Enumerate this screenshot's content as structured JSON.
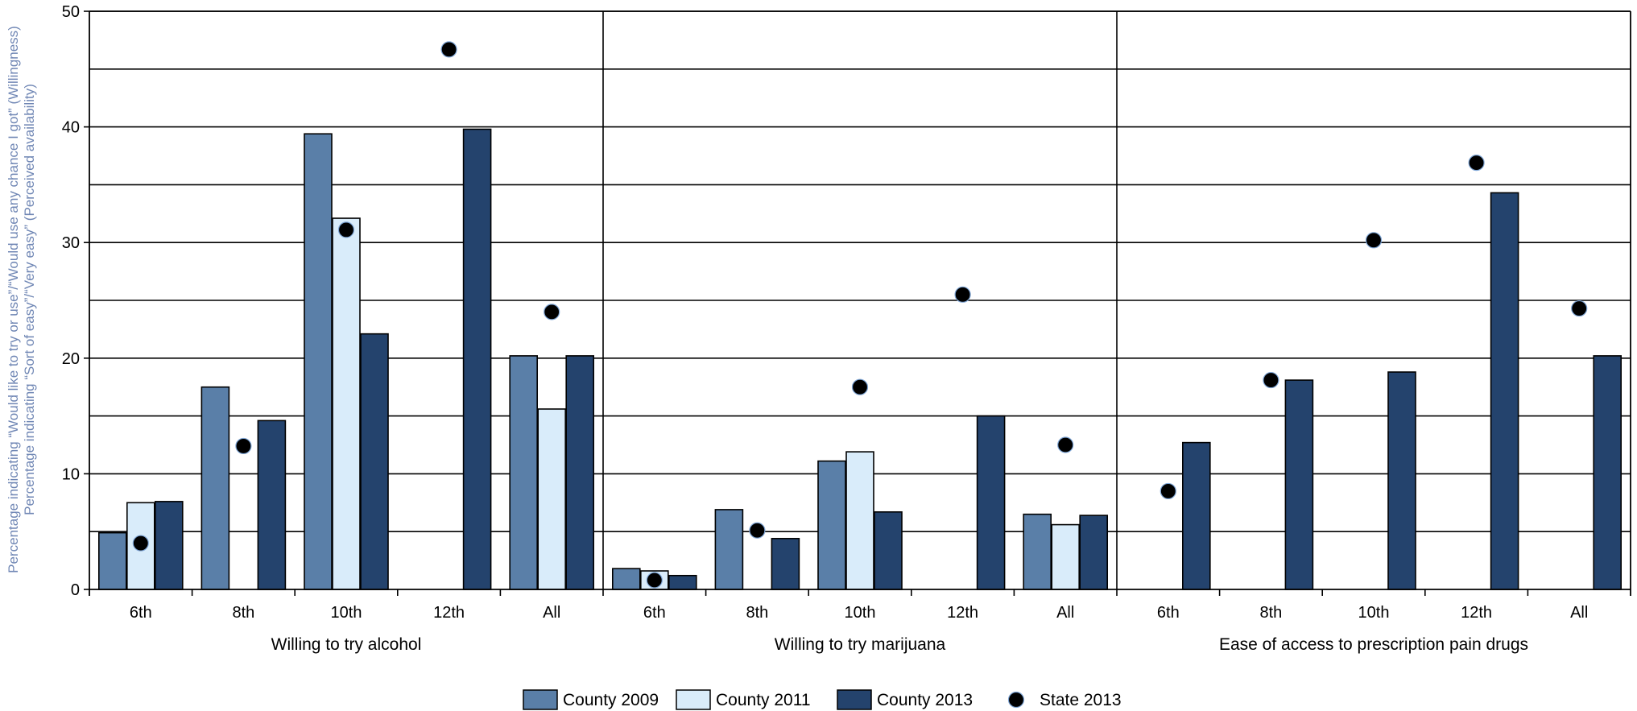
{
  "chart_data": {
    "type": "bar",
    "title": "",
    "ylabel_lines": [
      "Percentage indicating “Would like to try or use”/“Would use any chance I got” (Willingness)",
      "Percentage indicating “Sort of easy”/“Very easy” (Perceived availability)"
    ],
    "ylim": [
      0,
      50
    ],
    "yticks": [
      "0",
      "10",
      "20",
      "30",
      "40",
      "50"
    ],
    "grid": true,
    "legend_position": "bottom",
    "groups": [
      {
        "label": "Willing to try alcohol",
        "categories": [
          "6th",
          "8th",
          "10th",
          "12th",
          "All"
        ],
        "series": [
          {
            "name": "County 2009",
            "values": [
              4.9,
              17.5,
              39.4,
              null,
              20.2
            ]
          },
          {
            "name": "County 2011",
            "values": [
              7.5,
              null,
              32.1,
              null,
              15.6
            ]
          },
          {
            "name": "County 2013",
            "values": [
              7.6,
              14.6,
              22.1,
              39.8,
              20.2
            ]
          },
          {
            "name": "State 2013",
            "values": [
              4.0,
              12.4,
              31.1,
              46.7,
              24.0
            ]
          }
        ]
      },
      {
        "label": "Willing to try marijuana",
        "categories": [
          "6th",
          "8th",
          "10th",
          "12th",
          "All"
        ],
        "series": [
          {
            "name": "County 2009",
            "values": [
              1.8,
              6.9,
              11.1,
              null,
              6.5
            ]
          },
          {
            "name": "County 2011",
            "values": [
              1.6,
              null,
              11.9,
              null,
              5.6
            ]
          },
          {
            "name": "County 2013",
            "values": [
              1.2,
              4.4,
              6.7,
              15.0,
              6.4
            ]
          },
          {
            "name": "State 2013",
            "values": [
              0.8,
              5.1,
              17.5,
              25.5,
              12.5
            ]
          }
        ]
      },
      {
        "label": "Ease of access to prescription pain drugs",
        "categories": [
          "6th",
          "8th",
          "10th",
          "12th",
          "All"
        ],
        "series": [
          {
            "name": "County 2009",
            "values": [
              null,
              null,
              null,
              null,
              null
            ]
          },
          {
            "name": "County 2011",
            "values": [
              null,
              null,
              null,
              null,
              null
            ]
          },
          {
            "name": "County 2013",
            "values": [
              12.7,
              18.1,
              18.8,
              34.3,
              20.2
            ]
          },
          {
            "name": "State 2013",
            "values": [
              8.5,
              18.1,
              30.2,
              36.9,
              24.3
            ]
          }
        ]
      }
    ],
    "legend": [
      {
        "name": "County 2009",
        "kind": "bar",
        "color": "#5a7fa8"
      },
      {
        "name": "County 2011",
        "kind": "bar",
        "color": "#d9ecfa"
      },
      {
        "name": "County 2013",
        "kind": "bar",
        "color": "#24436d"
      },
      {
        "name": "State 2013",
        "kind": "dot",
        "color": "#000000"
      }
    ]
  }
}
